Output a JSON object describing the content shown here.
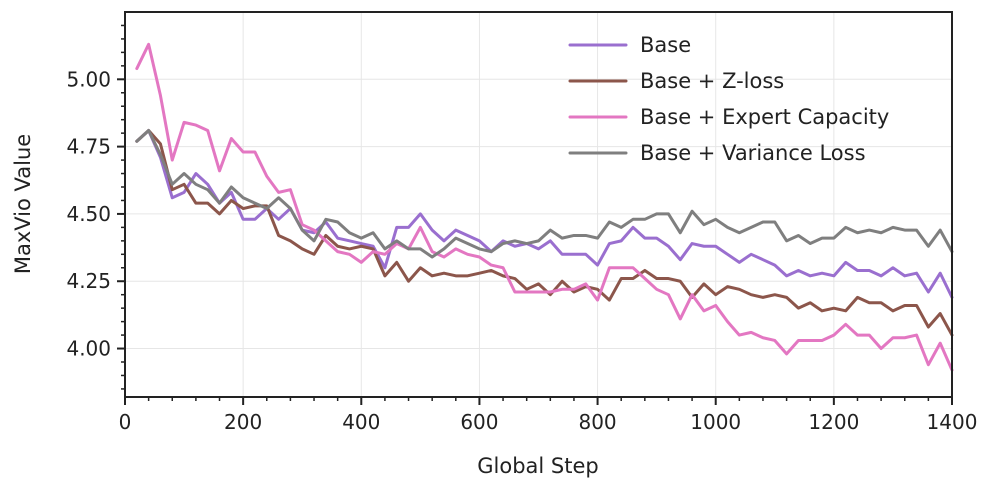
{
  "chart_data": {
    "type": "line",
    "xlabel": "Global Step",
    "ylabel": "MaxVio Value",
    "xlim": [
      0,
      1400
    ],
    "ylim": [
      3.82,
      5.25
    ],
    "xticks": [
      0,
      200,
      400,
      600,
      800,
      1000,
      1200,
      1400
    ],
    "yticks": [
      4.0,
      4.25,
      4.5,
      4.75,
      5.0
    ],
    "xtick_labels": [
      "0",
      "200",
      "400",
      "600",
      "800",
      "1000",
      "1200",
      "1400"
    ],
    "ytick_labels": [
      "4.00",
      "4.25",
      "4.50",
      "4.75",
      "5.00"
    ],
    "grid": true,
    "legend_position": "top-right",
    "x": [
      20,
      40,
      60,
      80,
      100,
      120,
      140,
      160,
      180,
      200,
      220,
      240,
      260,
      280,
      300,
      320,
      340,
      360,
      380,
      400,
      420,
      440,
      460,
      480,
      500,
      520,
      540,
      560,
      580,
      600,
      620,
      640,
      660,
      680,
      700,
      720,
      740,
      760,
      780,
      800,
      820,
      840,
      860,
      880,
      900,
      920,
      940,
      960,
      980,
      1000,
      1020,
      1040,
      1060,
      1080,
      1100,
      1120,
      1140,
      1160,
      1180,
      1200,
      1220,
      1240,
      1260,
      1280,
      1300,
      1320,
      1340,
      1360,
      1380,
      1400
    ],
    "series": [
      {
        "name": "Base",
        "color": "#9a6fcf",
        "values": [
          4.77,
          4.81,
          4.71,
          4.56,
          4.58,
          4.65,
          4.61,
          4.54,
          4.58,
          4.48,
          4.48,
          4.52,
          4.48,
          4.52,
          4.44,
          4.43,
          4.47,
          4.41,
          4.4,
          4.39,
          4.38,
          4.3,
          4.45,
          4.45,
          4.5,
          4.44,
          4.4,
          4.44,
          4.42,
          4.4,
          4.36,
          4.4,
          4.38,
          4.39,
          4.37,
          4.4,
          4.35,
          4.35,
          4.35,
          4.31,
          4.39,
          4.4,
          4.45,
          4.41,
          4.41,
          4.38,
          4.33,
          4.39,
          4.38,
          4.38,
          4.35,
          4.32,
          4.35,
          4.33,
          4.31,
          4.27,
          4.29,
          4.27,
          4.28,
          4.27,
          4.32,
          4.29,
          4.29,
          4.27,
          4.3,
          4.27,
          4.28,
          4.21,
          4.28,
          4.19
        ]
      },
      {
        "name": "Base + Z-loss",
        "color": "#8c564b",
        "values": [
          4.77,
          4.81,
          4.76,
          4.59,
          4.61,
          4.54,
          4.54,
          4.5,
          4.55,
          4.52,
          4.53,
          4.53,
          4.42,
          4.4,
          4.37,
          4.35,
          4.42,
          4.38,
          4.37,
          4.38,
          4.37,
          4.27,
          4.32,
          4.25,
          4.3,
          4.27,
          4.28,
          4.27,
          4.27,
          4.28,
          4.29,
          4.27,
          4.26,
          4.22,
          4.24,
          4.2,
          4.25,
          4.21,
          4.23,
          4.22,
          4.18,
          4.26,
          4.26,
          4.29,
          4.26,
          4.26,
          4.25,
          4.19,
          4.24,
          4.2,
          4.23,
          4.22,
          4.2,
          4.19,
          4.2,
          4.19,
          4.15,
          4.17,
          4.14,
          4.15,
          4.14,
          4.19,
          4.17,
          4.17,
          4.14,
          4.16,
          4.16,
          4.08,
          4.13,
          4.05
        ]
      },
      {
        "name": "Base + Expert Capacity",
        "color": "#e377c2",
        "values": [
          5.04,
          5.13,
          4.94,
          4.7,
          4.84,
          4.83,
          4.81,
          4.66,
          4.78,
          4.73,
          4.73,
          4.64,
          4.58,
          4.59,
          4.46,
          4.44,
          4.4,
          4.36,
          4.35,
          4.32,
          4.36,
          4.35,
          4.39,
          4.37,
          4.45,
          4.36,
          4.34,
          4.37,
          4.35,
          4.34,
          4.31,
          4.3,
          4.21,
          4.21,
          4.21,
          4.21,
          4.22,
          4.22,
          4.24,
          4.18,
          4.3,
          4.3,
          4.3,
          4.26,
          4.22,
          4.2,
          4.11,
          4.2,
          4.14,
          4.16,
          4.1,
          4.05,
          4.06,
          4.04,
          4.03,
          3.98,
          4.03,
          4.03,
          4.03,
          4.05,
          4.09,
          4.05,
          4.05,
          4.0,
          4.04,
          4.04,
          4.05,
          3.94,
          4.02,
          3.92
        ]
      },
      {
        "name": "Base + Variance Loss",
        "color": "#7f7f7f",
        "values": [
          4.77,
          4.81,
          4.72,
          4.61,
          4.65,
          4.61,
          4.59,
          4.54,
          4.6,
          4.56,
          4.54,
          4.52,
          4.56,
          4.52,
          4.44,
          4.4,
          4.48,
          4.47,
          4.43,
          4.41,
          4.43,
          4.37,
          4.4,
          4.37,
          4.37,
          4.34,
          4.37,
          4.41,
          4.39,
          4.37,
          4.36,
          4.39,
          4.4,
          4.39,
          4.4,
          4.44,
          4.41,
          4.42,
          4.42,
          4.41,
          4.47,
          4.45,
          4.48,
          4.48,
          4.5,
          4.5,
          4.43,
          4.51,
          4.46,
          4.48,
          4.45,
          4.43,
          4.45,
          4.47,
          4.47,
          4.4,
          4.42,
          4.39,
          4.41,
          4.41,
          4.45,
          4.43,
          4.44,
          4.43,
          4.45,
          4.44,
          4.44,
          4.38,
          4.44,
          4.36
        ]
      }
    ]
  }
}
